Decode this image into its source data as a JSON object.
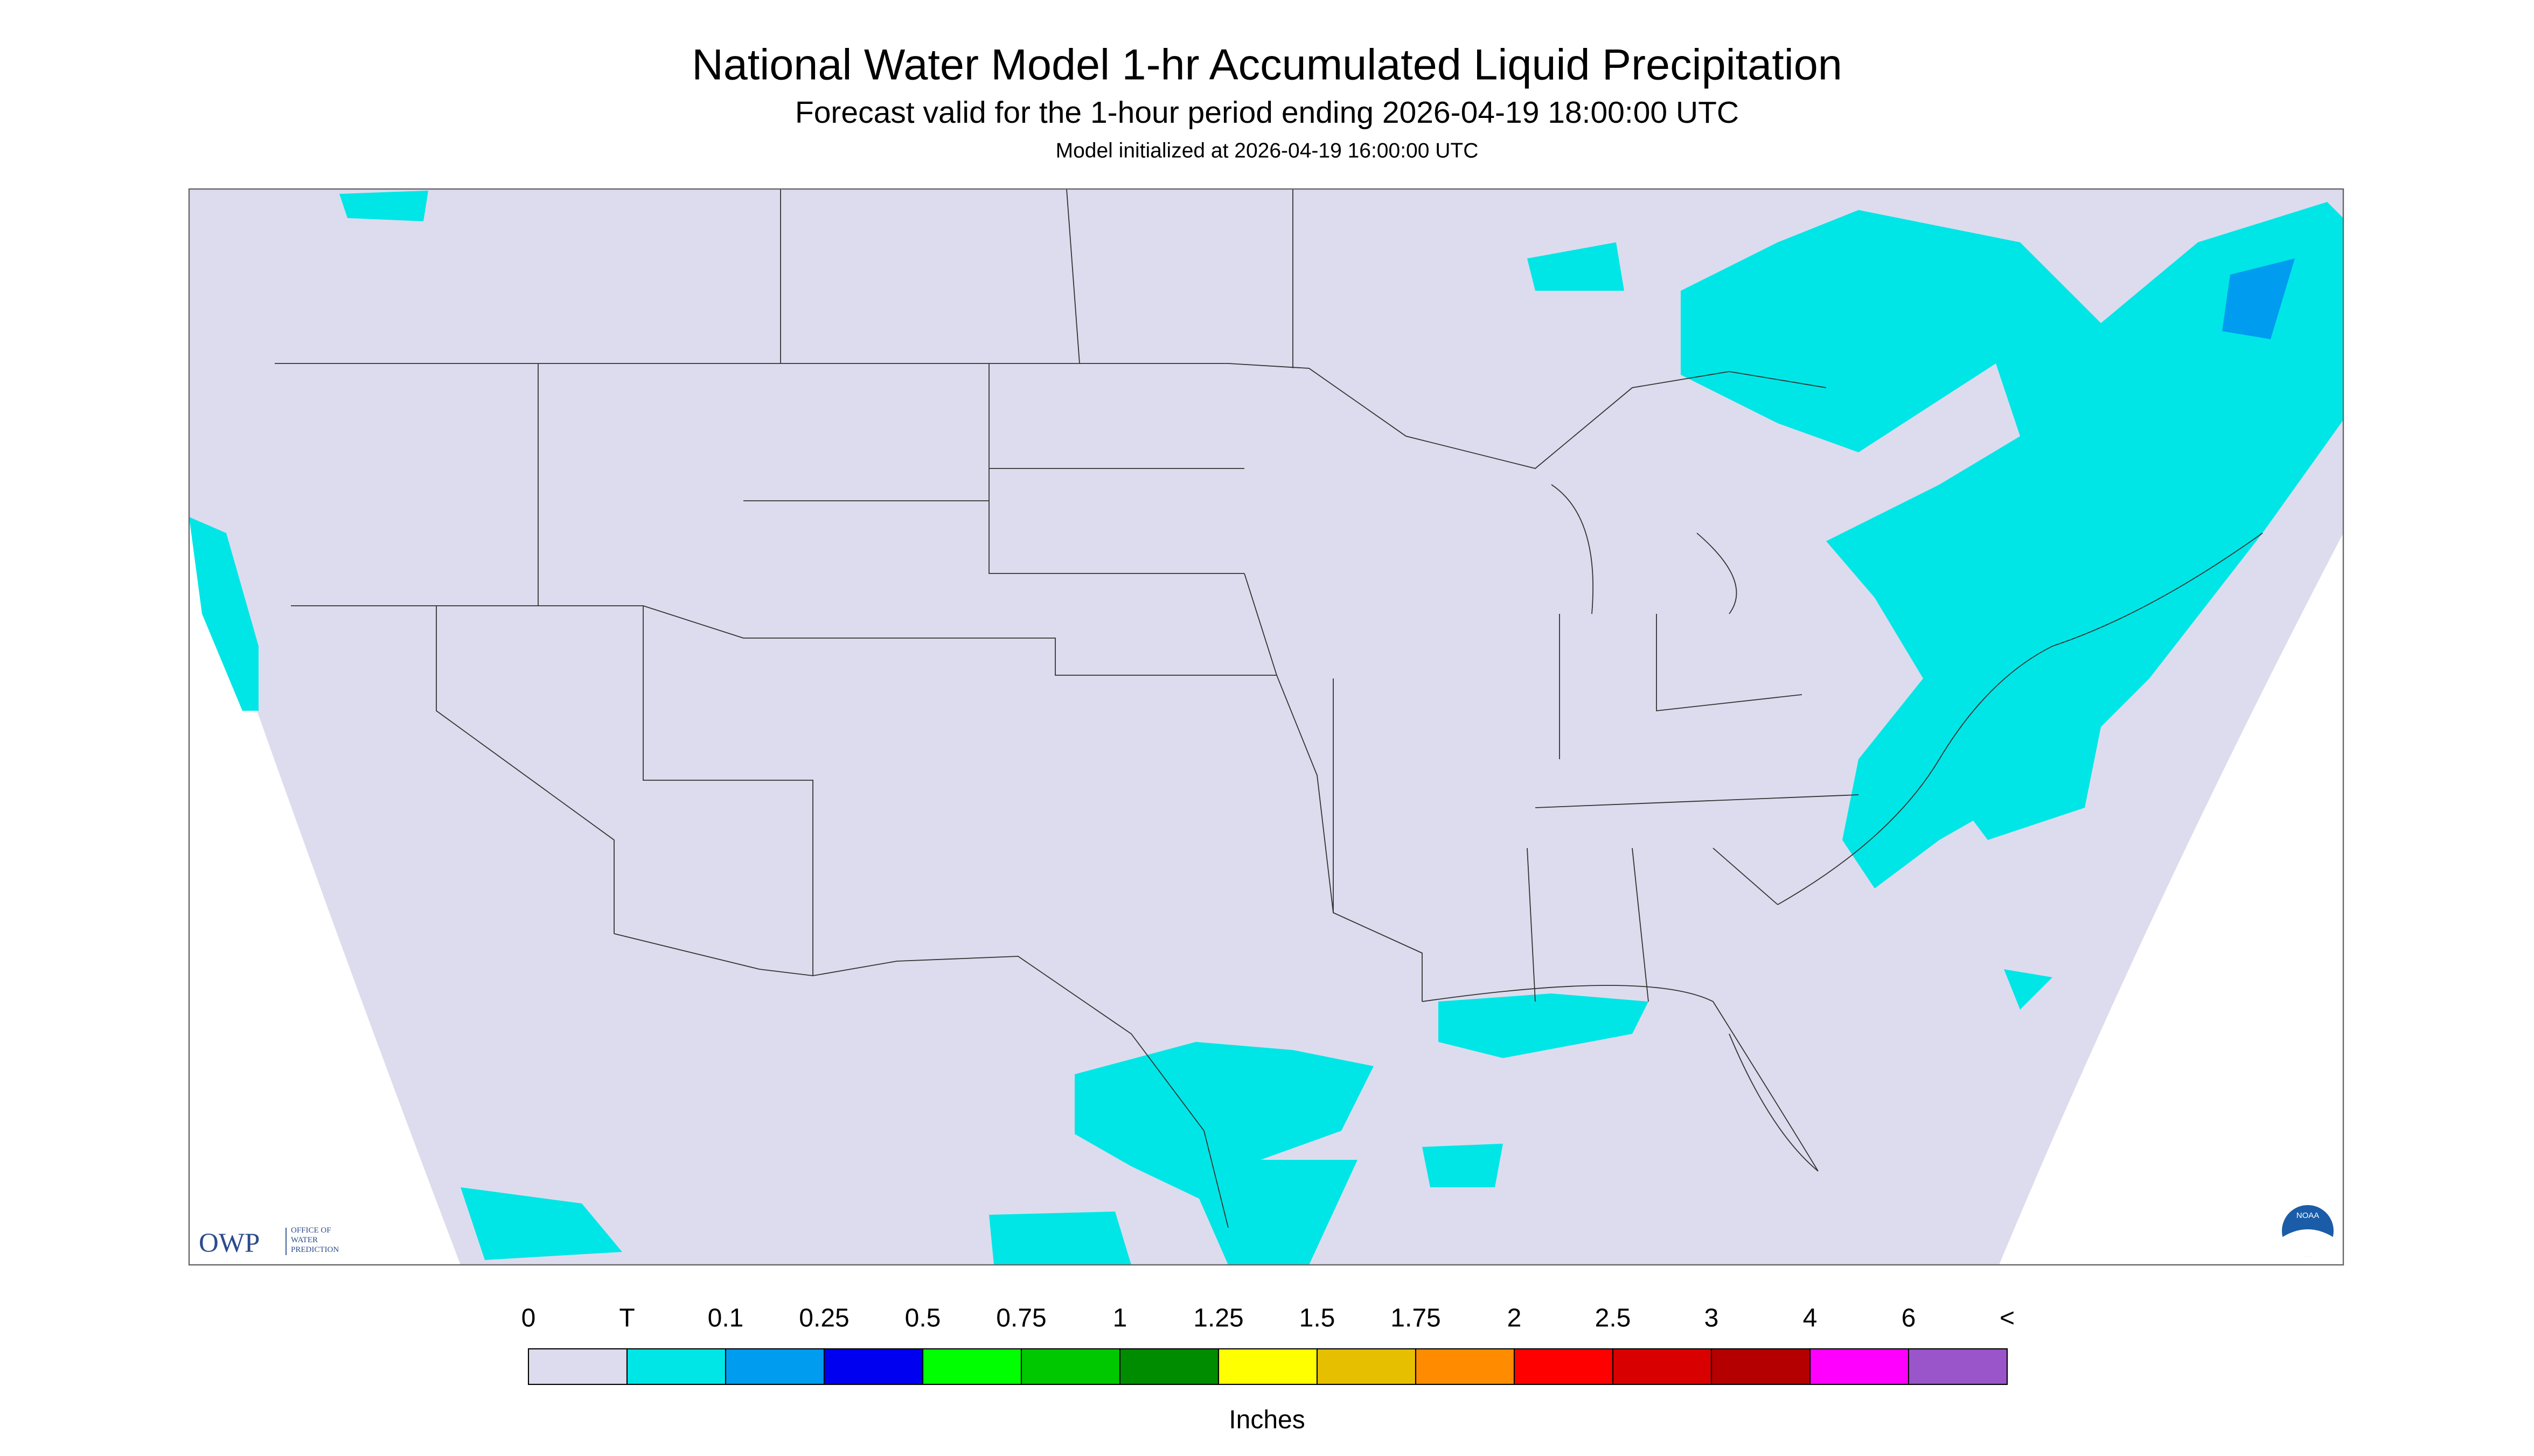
{
  "header": {
    "title": "National Water Model 1-hr Accumulated Liquid Precipitation",
    "subtitle": "Forecast valid for the 1-hour period ending 2026-04-19 18:00:00 UTC",
    "init": "Model initialized at 2026-04-19 16:00:00 UTC"
  },
  "logo": {
    "acronym": "OWP",
    "line1": "OFFICE OF",
    "line2": "WATER",
    "line3": "PREDICTION",
    "agency": "NOAA"
  },
  "legend": {
    "labels": [
      "0",
      "T",
      "0.1",
      "0.25",
      "0.5",
      "0.75",
      "1",
      "1.25",
      "1.5",
      "1.75",
      "2",
      "2.5",
      "3",
      "4",
      "6",
      "<"
    ],
    "colors": [
      "#dcdcee",
      "#00e6e6",
      "#009cf0",
      "#0000f0",
      "#00ff00",
      "#00c800",
      "#008c00",
      "#ffff00",
      "#e6c000",
      "#ff8c00",
      "#ff0000",
      "#d80000",
      "#b40000",
      "#ff00ff",
      "#9955c9"
    ],
    "unit": "Inches"
  }
}
